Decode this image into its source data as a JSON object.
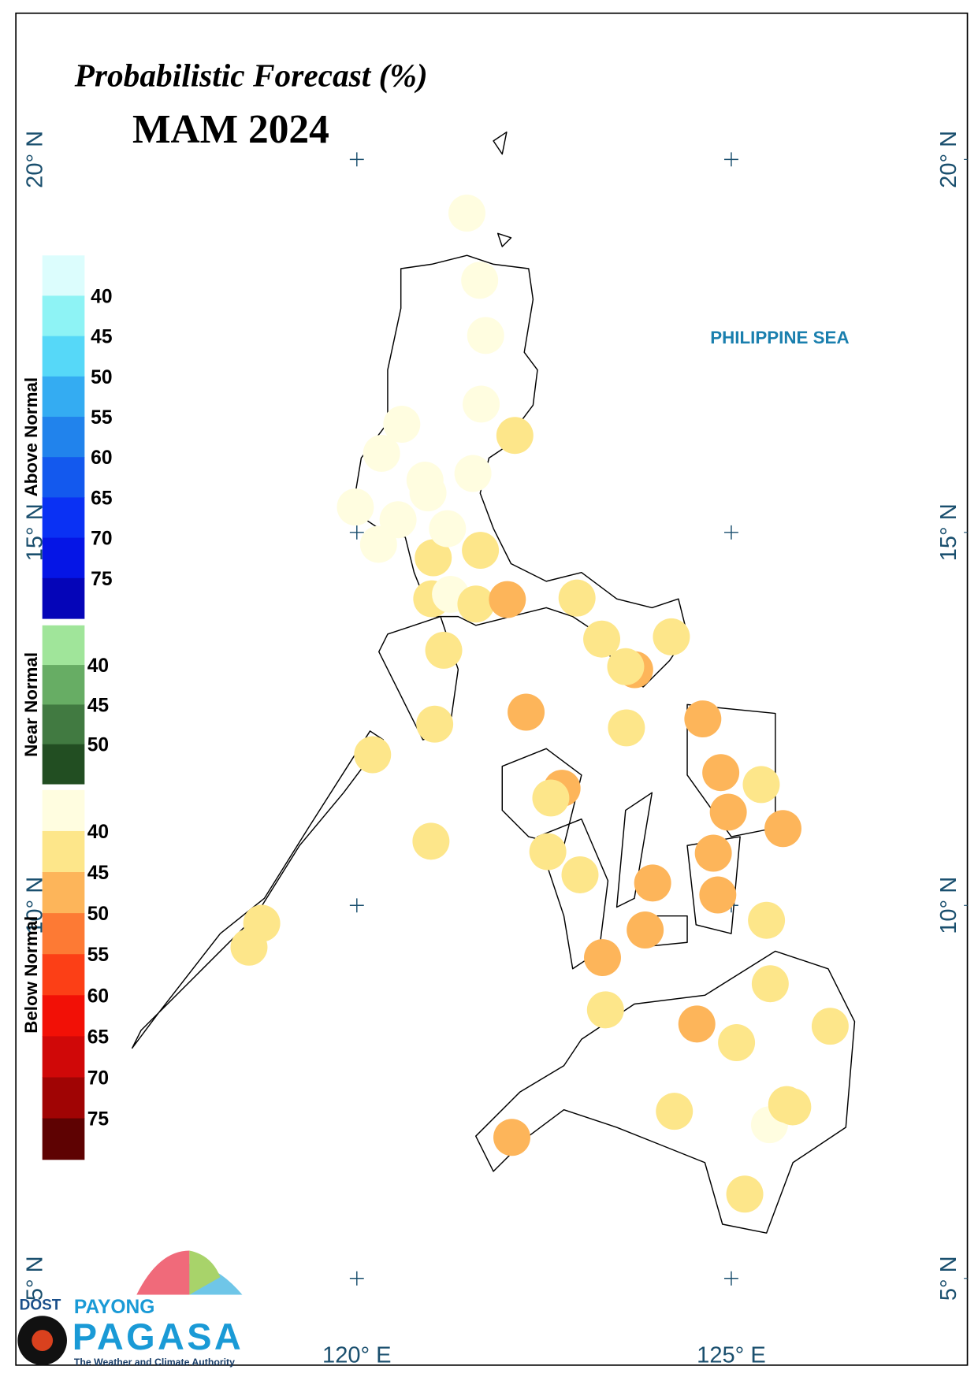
{
  "title": "Probabilistic Forecast (%)",
  "subtitle": "MAM 2024",
  "sea_label": "PHILIPPINE SEA",
  "lon_ticks": [
    {
      "value": 120,
      "label": "120° E"
    },
    {
      "value": 125,
      "label": "125° E"
    }
  ],
  "lat_ticks": [
    {
      "value": 20,
      "label": "20° N"
    },
    {
      "value": 15,
      "label": "15° N"
    },
    {
      "value": 10,
      "label": "10° N"
    },
    {
      "value": 5,
      "label": "5° N"
    }
  ],
  "legend": [
    {
      "name": "Above Normal",
      "colors": [
        "#dcfdfd",
        "#8ef3f5",
        "#56d8f8",
        "#34acf2",
        "#2183ec",
        "#1359ee",
        "#0a31f4",
        "#0515e6",
        "#0505b8"
      ],
      "ticks": [
        40,
        45,
        50,
        55,
        60,
        65,
        70,
        75
      ]
    },
    {
      "name": "Near Normal",
      "colors": [
        "#a0e59a",
        "#67ad64",
        "#417a41",
        "#224e22"
      ],
      "ticks": [
        40,
        45,
        50
      ]
    },
    {
      "name": "Below Normal",
      "colors": [
        "#fffde0",
        "#fde68a",
        "#fdb55a",
        "#fd7a34",
        "#fc3f16",
        "#f21006",
        "#d00808",
        "#a00404",
        "#5e0202"
      ],
      "ticks": [
        40,
        45,
        50,
        55,
        60,
        65,
        70,
        75
      ]
    }
  ],
  "stations": [
    {
      "lon": 121.47,
      "lat": 19.28,
      "value": 38
    },
    {
      "lon": 121.64,
      "lat": 18.38,
      "value": 38
    },
    {
      "lon": 121.72,
      "lat": 17.64,
      "value": 38
    },
    {
      "lon": 121.66,
      "lat": 16.72,
      "value": 38
    },
    {
      "lon": 122.11,
      "lat": 16.3,
      "value": 43
    },
    {
      "lon": 120.6,
      "lat": 16.45,
      "value": 38
    },
    {
      "lon": 120.33,
      "lat": 16.06,
      "value": 38
    },
    {
      "lon": 121.55,
      "lat": 15.79,
      "value": 38
    },
    {
      "lon": 120.91,
      "lat": 15.7,
      "value": 38
    },
    {
      "lon": 120.95,
      "lat": 15.53,
      "value": 38
    },
    {
      "lon": 119.98,
      "lat": 15.34,
      "value": 38
    },
    {
      "lon": 120.55,
      "lat": 15.17,
      "value": 38
    },
    {
      "lon": 120.29,
      "lat": 14.84,
      "value": 38
    },
    {
      "lon": 121.02,
      "lat": 14.66,
      "value": 43
    },
    {
      "lon": 121.21,
      "lat": 15.05,
      "value": 38
    },
    {
      "lon": 121.65,
      "lat": 14.76,
      "value": 43
    },
    {
      "lon": 121.0,
      "lat": 14.11,
      "value": 43
    },
    {
      "lon": 121.25,
      "lat": 14.17,
      "value": 38
    },
    {
      "lon": 121.59,
      "lat": 14.04,
      "value": 43
    },
    {
      "lon": 122.01,
      "lat": 14.1,
      "value": 48
    },
    {
      "lon": 122.94,
      "lat": 14.12,
      "value": 43
    },
    {
      "lon": 123.27,
      "lat": 13.57,
      "value": 43
    },
    {
      "lon": 124.2,
      "lat": 13.6,
      "value": 43
    },
    {
      "lon": 123.71,
      "lat": 13.16,
      "value": 48
    },
    {
      "lon": 123.59,
      "lat": 13.2,
      "value": 43
    },
    {
      "lon": 121.16,
      "lat": 13.42,
      "value": 43
    },
    {
      "lon": 122.26,
      "lat": 12.59,
      "value": 48
    },
    {
      "lon": 121.04,
      "lat": 12.43,
      "value": 43
    },
    {
      "lon": 123.6,
      "lat": 12.38,
      "value": 43
    },
    {
      "lon": 124.62,
      "lat": 12.5,
      "value": 48
    },
    {
      "lon": 120.21,
      "lat": 12.02,
      "value": 43
    },
    {
      "lon": 122.74,
      "lat": 11.57,
      "value": 48
    },
    {
      "lon": 122.59,
      "lat": 11.44,
      "value": 43
    },
    {
      "lon": 124.86,
      "lat": 11.78,
      "value": 48
    },
    {
      "lon": 125.4,
      "lat": 11.62,
      "value": 43
    },
    {
      "lon": 124.96,
      "lat": 11.25,
      "value": 48
    },
    {
      "lon": 125.69,
      "lat": 11.03,
      "value": 48
    },
    {
      "lon": 120.99,
      "lat": 10.86,
      "value": 43
    },
    {
      "lon": 122.55,
      "lat": 10.72,
      "value": 43
    },
    {
      "lon": 124.76,
      "lat": 10.7,
      "value": 48
    },
    {
      "lon": 122.98,
      "lat": 10.41,
      "value": 43
    },
    {
      "lon": 123.95,
      "lat": 10.3,
      "value": 48
    },
    {
      "lon": 124.82,
      "lat": 10.14,
      "value": 48
    },
    {
      "lon": 118.73,
      "lat": 9.76,
      "value": 43
    },
    {
      "lon": 118.56,
      "lat": 9.44,
      "value": 43
    },
    {
      "lon": 125.47,
      "lat": 9.8,
      "value": 43
    },
    {
      "lon": 123.85,
      "lat": 9.67,
      "value": 48
    },
    {
      "lon": 123.28,
      "lat": 9.3,
      "value": 48
    },
    {
      "lon": 125.52,
      "lat": 8.95,
      "value": 43
    },
    {
      "lon": 123.32,
      "lat": 8.6,
      "value": 43
    },
    {
      "lon": 124.54,
      "lat": 8.41,
      "value": 48
    },
    {
      "lon": 126.32,
      "lat": 8.38,
      "value": 43
    },
    {
      "lon": 125.07,
      "lat": 8.16,
      "value": 43
    },
    {
      "lon": 124.24,
      "lat": 7.24,
      "value": 43
    },
    {
      "lon": 125.51,
      "lat": 7.06,
      "value": 38
    },
    {
      "lon": 125.74,
      "lat": 7.33,
      "value": 43
    },
    {
      "lon": 125.82,
      "lat": 7.3,
      "value": 43
    },
    {
      "lon": 122.07,
      "lat": 6.89,
      "value": 48
    },
    {
      "lon": 125.18,
      "lat": 6.13,
      "value": 43
    }
  ],
  "logo": {
    "agency": "DOST",
    "brand_top": "PAYONG",
    "brand": "PAGASA",
    "tagline": "The Weather and Climate Authority"
  }
}
